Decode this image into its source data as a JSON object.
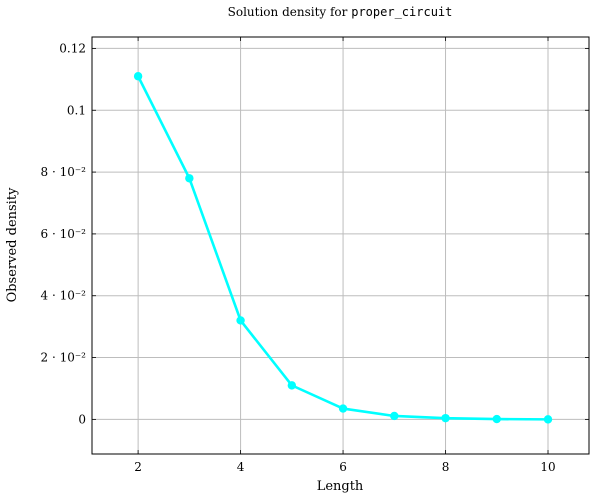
{
  "chart_data": {
    "type": "line",
    "title_prefix": "Solution density for ",
    "title_code": "proper_circuit",
    "xlabel": "Length",
    "ylabel": "Observed density",
    "xlim": [
      1.1,
      10.8
    ],
    "ylim": [
      -0.0112,
      0.1237
    ],
    "grid": true,
    "x_ticks": [
      2,
      4,
      6,
      8,
      10
    ],
    "x_tick_labels": [
      "2",
      "4",
      "6",
      "8",
      "10"
    ],
    "y_ticks": [
      0,
      0.02,
      0.04,
      0.06,
      0.08,
      0.1,
      0.12
    ],
    "y_tick_labels": [
      "0",
      "2 · 10⁻²",
      "4 · 10⁻²",
      "6 · 10⁻²",
      "8 · 10⁻²",
      "0.1",
      "0.12"
    ],
    "series": [
      {
        "color": "#00ffff",
        "x": [
          2,
          3,
          4,
          5,
          6,
          7,
          8,
          9,
          10
        ],
        "y": [
          0.111,
          0.078,
          0.032,
          0.011,
          0.0035,
          0.0011,
          0.0004,
          0.0001,
          0.0
        ]
      }
    ]
  }
}
